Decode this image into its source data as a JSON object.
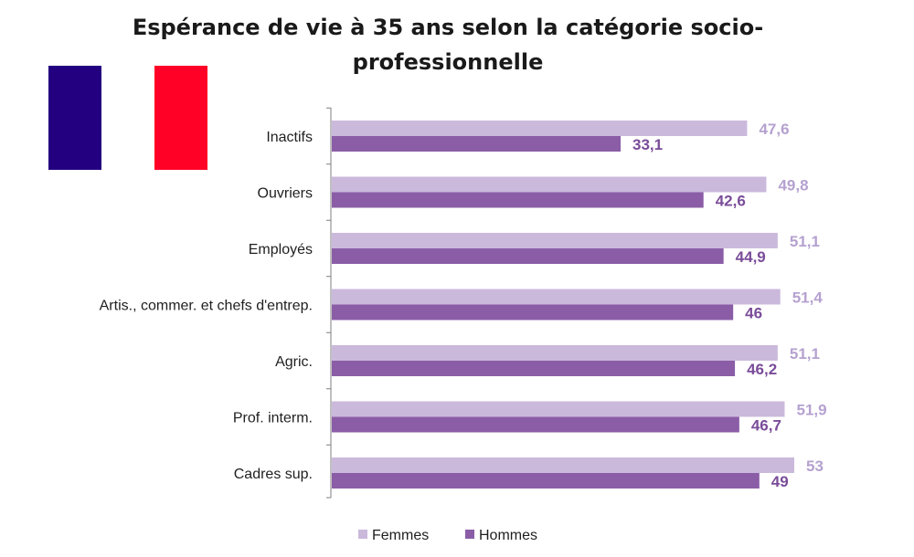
{
  "chart_data": {
    "type": "bar",
    "orientation": "horizontal",
    "title_lines": [
      "Espérance de vie à 35 ans selon la catégorie socio-",
      "professionnelle"
    ],
    "categories": [
      "Inactifs",
      "Ouvriers",
      "Employés",
      "Artis., commer. et chefs d'entrep.",
      "Agric.",
      "Prof. interm.",
      "Cadres sup."
    ],
    "series": [
      {
        "name": "Femmes",
        "color": "#cbb9dc",
        "label_color": "#b5a1cf",
        "values": [
          "47,6",
          "49,8",
          "51,1",
          "51,4",
          "51,1",
          "51,9",
          "53"
        ]
      },
      {
        "name": "Hommes",
        "color": "#8b5da7",
        "label_color": "#7a4c99",
        "values": [
          "33,1",
          "42,6",
          "44,9",
          "46",
          "46,2",
          "46,7",
          "49"
        ]
      }
    ],
    "xlim": [
      0,
      53
    ],
    "grid": false,
    "legend_position": "bottom"
  },
  "flag": {
    "icon": "france-flag",
    "colors": [
      "#23007f",
      "#ffffff",
      "#ff0027"
    ]
  }
}
